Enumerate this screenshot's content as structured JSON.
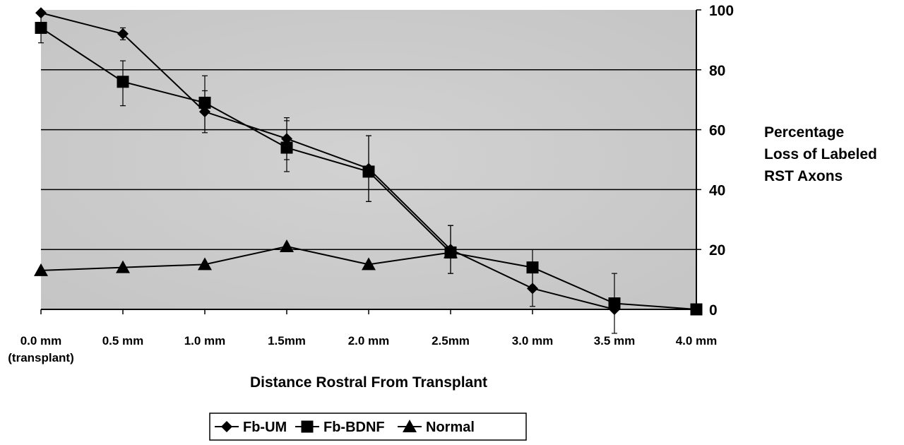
{
  "chart_data": {
    "type": "line",
    "title": "",
    "xlabel": "Distance Rostral From Transplant",
    "ylabel": [
      "Percentage",
      "Loss of Labeled",
      "RST Axons"
    ],
    "categories": [
      "0.0 mm",
      "0.5 mm",
      "1.0 mm",
      "1.5mm",
      "2.0 mm",
      "2.5mm",
      "3.0 mm",
      "3.5 mm",
      "4.0 mm"
    ],
    "category_sublabels": [
      "(transplant)",
      "",
      "",
      "",
      "",
      "",
      "",
      "",
      ""
    ],
    "ylim": [
      0,
      100
    ],
    "yticks": [
      "100",
      "80",
      "60",
      "40",
      "20",
      "0"
    ],
    "ytick_values": [
      100,
      80,
      60,
      40,
      20,
      0
    ],
    "y_axis_side": "right",
    "grid": true,
    "plot_background": "#cfcfcf",
    "legend_position": "bottom-center",
    "series": [
      {
        "name": "Fb-UM",
        "marker": "diamond",
        "values": [
          99,
          92,
          66,
          57,
          47,
          20,
          7,
          0,
          0
        ],
        "error_low": [
          null,
          2,
          7,
          7,
          11,
          8,
          6,
          null,
          null
        ],
        "error_high": [
          null,
          2,
          7,
          7,
          11,
          8,
          6,
          null,
          null
        ]
      },
      {
        "name": "Fb-BDNF",
        "marker": "square",
        "values": [
          94,
          76,
          69,
          54,
          46,
          19,
          14,
          2,
          0
        ],
        "error_low": [
          5,
          8,
          9,
          8,
          10,
          7,
          6,
          10,
          null
        ],
        "error_high": [
          5,
          7,
          9,
          9,
          12,
          9,
          6,
          10,
          null
        ]
      },
      {
        "name": "Normal",
        "marker": "triangle",
        "values": [
          13,
          14,
          15,
          21,
          15,
          19,
          null,
          null,
          null
        ]
      }
    ]
  }
}
